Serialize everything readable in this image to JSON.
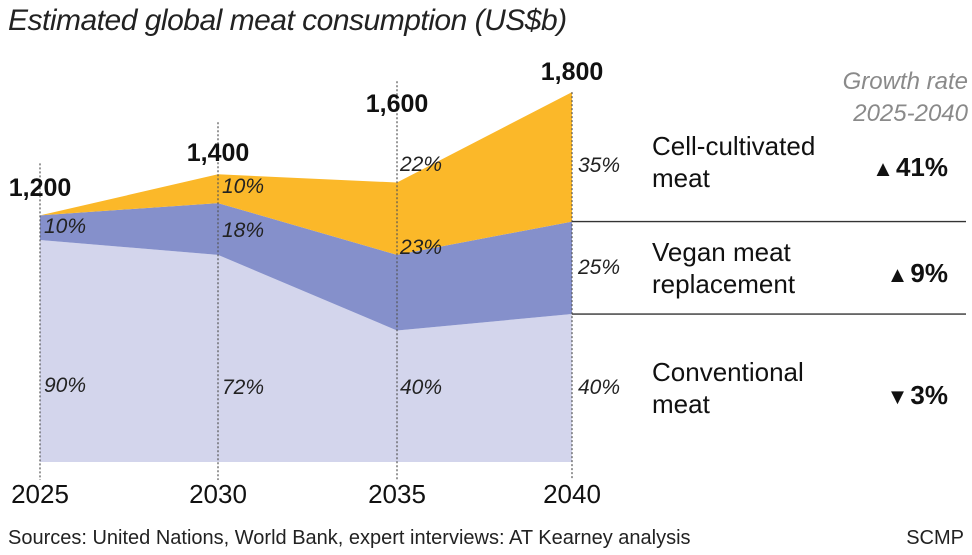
{
  "title": "Estimated global meat consumption (US$b)",
  "source": "Sources: United Nations, World Bank, expert interviews: AT Kearney analysis",
  "brand": "SCMP",
  "growth_header": [
    "Growth rate",
    "2025-2040"
  ],
  "colors": {
    "cell_cultivated": "#fbb829",
    "vegan": "#8590cb",
    "conventional": "#d3d5ec"
  },
  "chart_data": {
    "type": "area",
    "stacked": true,
    "x": [
      "2025",
      "2030",
      "2035",
      "2040"
    ],
    "totals": [
      1200,
      1400,
      1600,
      1800
    ],
    "total_labels": [
      "1,200",
      "1,400",
      "1,600",
      "1,800"
    ],
    "series": [
      {
        "name": "Conventional meat",
        "key": "conventional",
        "share": [
          90,
          72,
          40,
          40
        ],
        "share_labels": [
          "90%",
          "72%",
          "40%",
          "40%"
        ],
        "growth": "3%",
        "direction": "down"
      },
      {
        "name": "Vegan meat replacement",
        "key": "vegan",
        "share": [
          10,
          18,
          23,
          25
        ],
        "share_labels": [
          "10%",
          "18%",
          "23%",
          "25%"
        ],
        "growth": "9%",
        "direction": "up"
      },
      {
        "name": "Cell-cultivated meat",
        "key": "cell_cultivated",
        "share": [
          0,
          10,
          22,
          35
        ],
        "share_labels": [
          "",
          "10%",
          "22%",
          "35%"
        ],
        "growth": "41%",
        "direction": "up"
      }
    ],
    "legend": [
      {
        "lines": [
          "Cell-cultivated",
          "meat"
        ],
        "growth": "41%",
        "arrow": "▲"
      },
      {
        "lines": [
          "Vegan meat",
          "replacement"
        ],
        "growth": "9%",
        "arrow": "▲"
      },
      {
        "lines": [
          "Conventional",
          "meat"
        ],
        "growth": "3%",
        "arrow": "▼"
      }
    ]
  }
}
